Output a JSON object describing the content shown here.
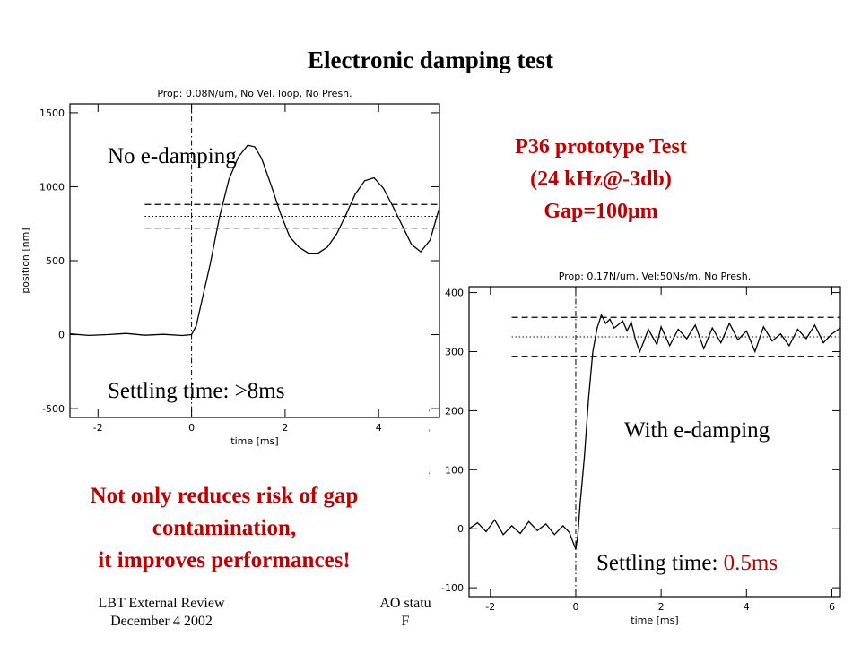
{
  "slide": {
    "title": "Electronic damping test",
    "prototype": {
      "line1": "P36 prototype Test",
      "line2": "(24 kHz@-3db)",
      "line3": "Gap=100μm"
    },
    "conclusion": {
      "line1": "Not only reduces risk of gap",
      "line2": "contamination,",
      "line3": "it improves performances!"
    },
    "footer": {
      "left_line1": "LBT External Review",
      "left_line2": "December 4 2002",
      "mid_line1": "AO statu",
      "mid_line2": "F"
    }
  },
  "chart_data": [
    {
      "type": "line",
      "title": "Prop: 0.08N/um, No Vel. loop, No Presh.",
      "xlabel": "time [ms]",
      "ylabel": "position [nm]",
      "xlim": [
        -2.6,
        5.3
      ],
      "ylim": [
        -560,
        1560
      ],
      "xticks": [
        -2,
        0,
        2,
        4
      ],
      "yticks": [
        -500,
        0,
        500,
        1000,
        1500
      ],
      "annotation_label": "No e-damping",
      "settling_label": "Settling time: >8ms",
      "settling_value": "",
      "reference_lines": {
        "upper": 880,
        "middle": 800,
        "lower": 720,
        "x_start": -1.0,
        "step_time": 0
      },
      "series": [
        {
          "x": [
            -2.6,
            -2.2,
            -1.8,
            -1.4,
            -1.0,
            -0.6,
            -0.2,
            0.0,
            0.1,
            0.2,
            0.4,
            0.6,
            0.8,
            1.0,
            1.2,
            1.35,
            1.5,
            1.7,
            1.9,
            2.1,
            2.3,
            2.5,
            2.7,
            2.9,
            3.1,
            3.3,
            3.5,
            3.7,
            3.9,
            4.1,
            4.3,
            4.5,
            4.7,
            4.9,
            5.1,
            5.3
          ],
          "y": [
            5,
            -5,
            0,
            8,
            -4,
            2,
            -6,
            0,
            60,
            200,
            480,
            800,
            1050,
            1200,
            1280,
            1270,
            1190,
            1010,
            820,
            660,
            590,
            550,
            550,
            590,
            680,
            810,
            950,
            1040,
            1060,
            990,
            870,
            740,
            610,
            560,
            640,
            860
          ]
        }
      ]
    },
    {
      "type": "line",
      "title": "Prop: 0.17N/um, Vel:50Ns/m, No Presh.",
      "xlabel": "time [ms]",
      "ylabel": "position [nm]",
      "xlim": [
        -2.5,
        6.2
      ],
      "ylim": [
        -115,
        410
      ],
      "xticks": [
        -2,
        0,
        2,
        4,
        6
      ],
      "yticks": [
        -100,
        0,
        100,
        200,
        300,
        400
      ],
      "annotation_label": "With e-damping",
      "settling_label": "Settling time:",
      "settling_value": "0.5ms",
      "reference_lines": {
        "upper": 358,
        "middle": 325,
        "lower": 292,
        "x_start": -1.5,
        "step_time": 0
      },
      "series": [
        {
          "x": [
            -2.5,
            -2.3,
            -2.1,
            -1.9,
            -1.7,
            -1.5,
            -1.3,
            -1.1,
            -0.9,
            -0.7,
            -0.5,
            -0.3,
            -0.15,
            0.0,
            0.05,
            0.1,
            0.2,
            0.3,
            0.4,
            0.5,
            0.6,
            0.7,
            0.8,
            0.9,
            1.0,
            1.1,
            1.2,
            1.3,
            1.4,
            1.5,
            1.6,
            1.7,
            1.8,
            1.9,
            2.0,
            2.2,
            2.4,
            2.6,
            2.8,
            3.0,
            3.2,
            3.4,
            3.6,
            3.8,
            4.0,
            4.2,
            4.4,
            4.6,
            4.8,
            5.0,
            5.2,
            5.4,
            5.6,
            5.8,
            6.0,
            6.2
          ],
          "y": [
            0,
            10,
            -5,
            15,
            -10,
            5,
            -8,
            12,
            -3,
            8,
            -10,
            5,
            -6,
            -35,
            -10,
            40,
            120,
            220,
            300,
            340,
            362,
            348,
            355,
            340,
            346,
            352,
            335,
            350,
            320,
            300,
            318,
            338,
            325,
            312,
            342,
            310,
            338,
            322,
            345,
            305,
            340,
            315,
            348,
            320,
            335,
            300,
            342,
            318,
            330,
            310,
            338,
            322,
            345,
            315,
            330,
            340
          ]
        }
      ]
    }
  ]
}
